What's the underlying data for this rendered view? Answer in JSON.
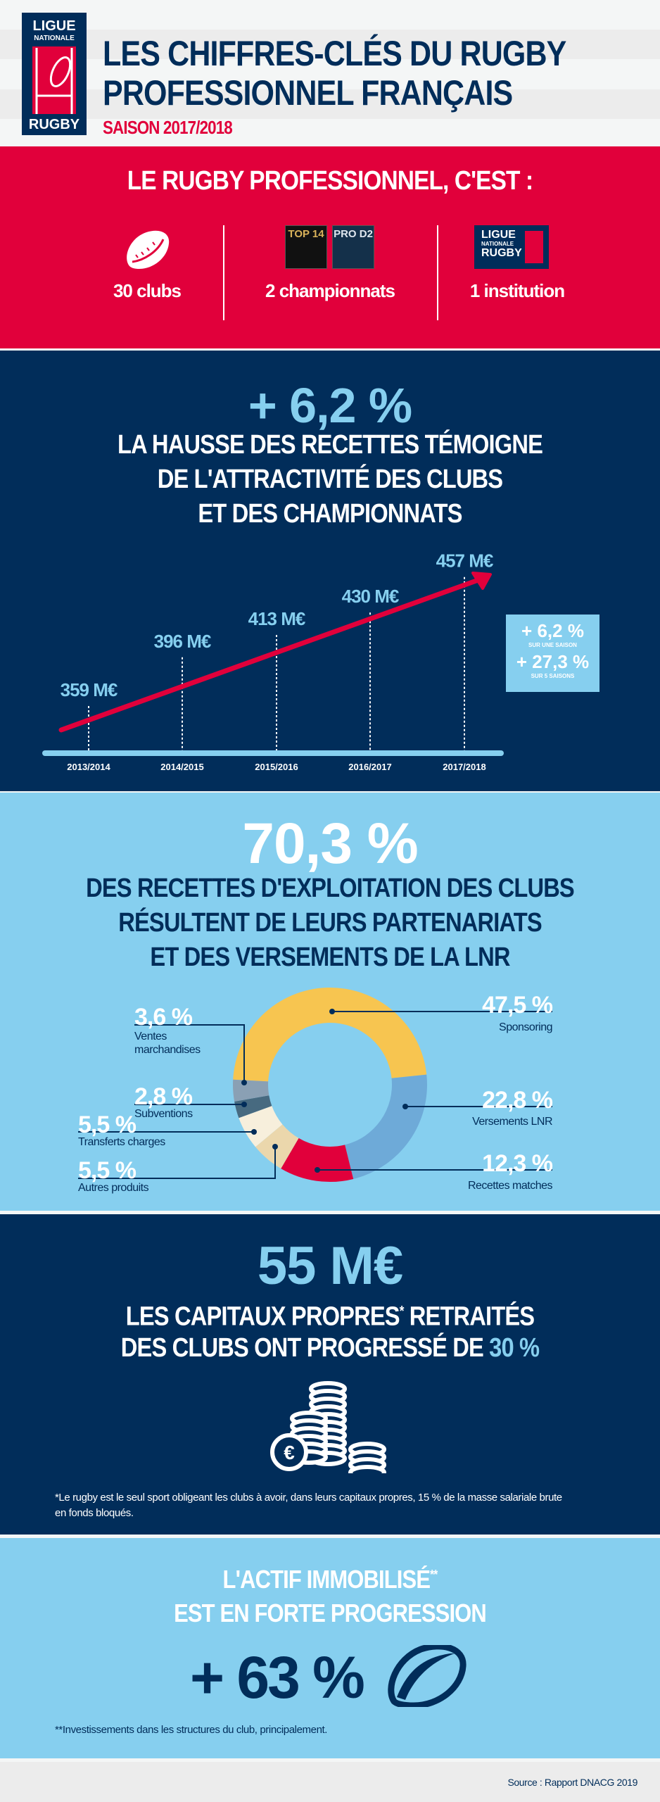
{
  "header": {
    "logo": {
      "line1": "LIGUE",
      "line2": "NATIONALE",
      "line3": "RUGBY"
    },
    "title_line1": "LES CHIFFRES-CLÉS DU RUGBY",
    "title_line2": "PROFESSIONNEL FRANÇAIS",
    "season": "SAISON 2017/2018"
  },
  "intro": {
    "heading": "LE RUGBY PROFESSIONNEL, C'EST :",
    "items": [
      {
        "icon": "rugby-ball-icon",
        "label": "30 clubs"
      },
      {
        "icon": "top14-prod2-logos",
        "label": "2 championnats",
        "logo_a": "TOP 14",
        "logo_b": "PRO D2"
      },
      {
        "icon": "lnr-logo",
        "label": "1 institution"
      }
    ]
  },
  "revenue": {
    "headline": "+ 6,2 %",
    "title": [
      "LA HAUSSE DES RECETTES TÉMOIGNE",
      "DE L'ATTRACTIVITÉ DES CLUBS",
      "ET DES CHAMPIONNATS"
    ],
    "box": {
      "v1": "+ 6,2 %",
      "l1": "SUR UNE SAISON",
      "v2": "+ 27,3 %",
      "l2": "SUR 5 SAISONS"
    }
  },
  "chart_data": [
    {
      "type": "line",
      "categories": [
        "2013/2014",
        "2014/2015",
        "2015/2016",
        "2016/2017",
        "2017/2018"
      ],
      "values": [
        359,
        396,
        413,
        430,
        457
      ],
      "labels": [
        "359 M€",
        "396 M€",
        "413 M€",
        "430 M€",
        "457 M€"
      ],
      "unit": "M€",
      "colors": {
        "arrow": "#e1003b",
        "axis": "#86cfef"
      }
    },
    {
      "type": "pie",
      "slices": [
        {
          "label": "Sponsoring",
          "value": 47.5,
          "text": "47,5 %",
          "color": "#f7c550"
        },
        {
          "label": "Versements LNR",
          "value": 22.8,
          "text": "22,8 %",
          "color": "#6eaad8"
        },
        {
          "label": "Recettes matches",
          "value": 12.3,
          "text": "12,3 %",
          "color": "#e1003b"
        },
        {
          "label": "Autres produits",
          "value": 5.5,
          "text": "5,5 %",
          "color": "#ebd7ac"
        },
        {
          "label": "Transferts charges",
          "value": 5.5,
          "text": "5,5 %",
          "color": "#f7efdc"
        },
        {
          "label": "Subventions",
          "value": 2.8,
          "text": "2,8 %",
          "color": "#476a80"
        },
        {
          "label": "Ventes marchandises",
          "value": 3.6,
          "text": "3,6 %",
          "color": "#8aa0b4"
        }
      ]
    }
  ],
  "operating": {
    "headline": "70,3 %",
    "title": [
      "DES RECETTES D'EXPLOITATION DES CLUBS",
      "RÉSULTENT DE LEURS PARTENARIATS",
      "ET DES VERSEMENTS DE LA LNR"
    ],
    "ventes_l1": "Ventes",
    "ventes_l2": "marchandises"
  },
  "equity": {
    "headline": "55 M€",
    "line1": "LES CAPITAUX PROPRES",
    "star": "*",
    "line1b": " RETRAITÉS",
    "line2": "DES CLUBS ONT PROGRESSÉ DE ",
    "highlight": "30 %",
    "footnote_l1": "*Le rugby est le seul sport obligeant les clubs à avoir, dans leurs capitaux propres, 15 % de la masse salariale brute",
    "footnote_l2": "en fonds bloqués."
  },
  "assets": {
    "line1": "L'ACTIF IMMOBILISÉ",
    "star": "**",
    "line2": "EST EN FORTE PROGRESSION",
    "headline": "+ 63 %",
    "footnote": "**Investissements dans les structures du club, principalement."
  },
  "footer": {
    "source": "Source : Rapport DNACG 2019"
  },
  "colors": {
    "navy": "#012d5a",
    "red": "#e1003b",
    "light_blue": "#86cfef"
  }
}
